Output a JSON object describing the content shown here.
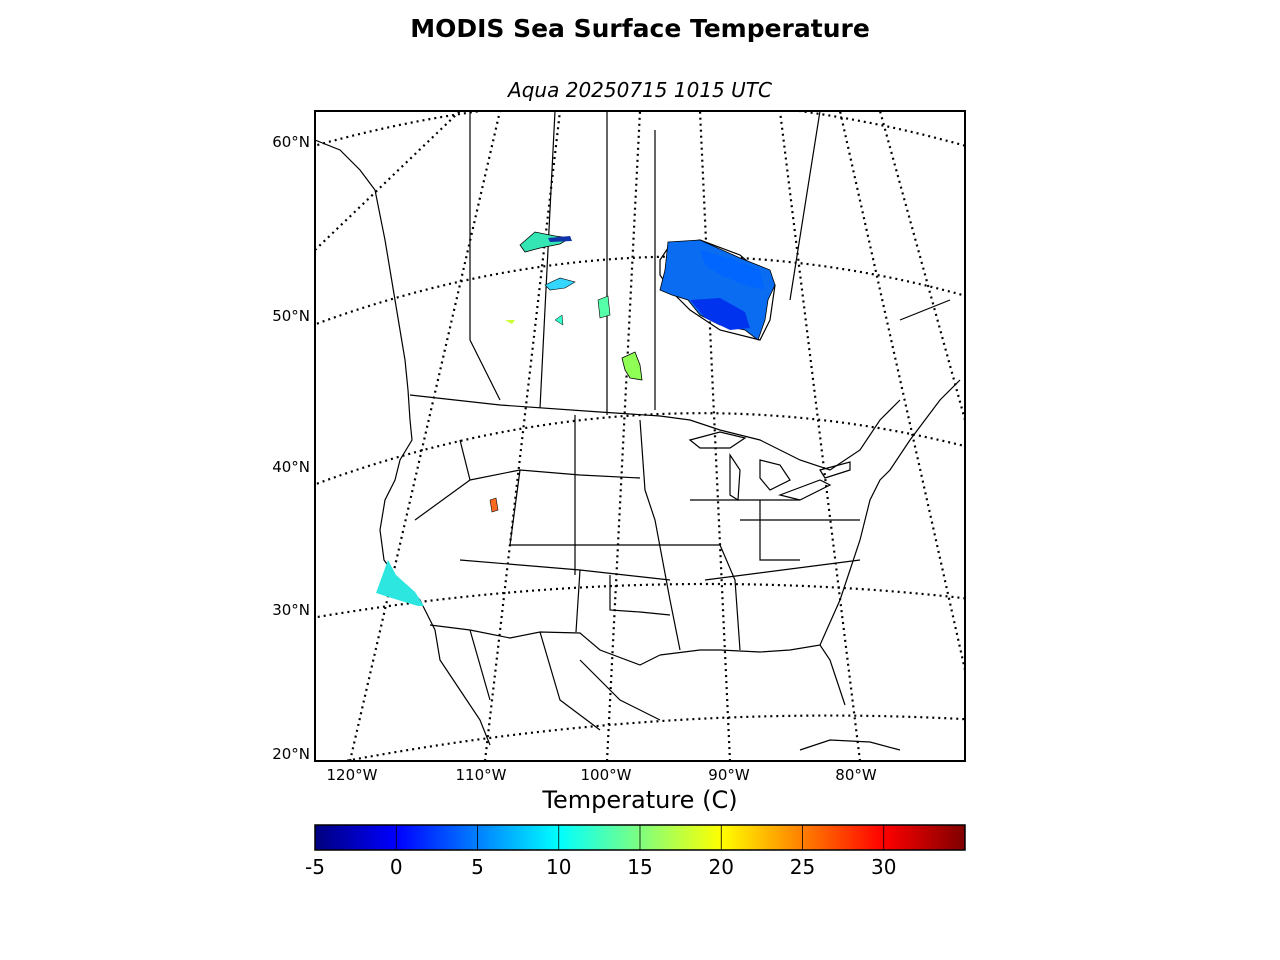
{
  "title": "MODIS Sea Surface Temperature",
  "subtitle": "Aqua 20250715 1015 UTC",
  "map": {
    "projection": "lambert-conformal",
    "lat_labels": [
      "60°N",
      "50°N",
      "40°N",
      "30°N",
      "20°N"
    ],
    "lon_labels": [
      "120°W",
      "110°W",
      "100°W",
      "90°W",
      "80°W"
    ],
    "graticule_style": "dotted",
    "land_color": "#ffffff",
    "coastline_color": "#000000",
    "sst_regions": [
      {
        "name": "Lake Winnipeg area lakes (northwest)",
        "approx_temp_c": 12
      },
      {
        "name": "Hudson Bay (southwest)",
        "approx_temp_c": 3
      },
      {
        "name": "James Bay",
        "approx_temp_c": 1
      },
      {
        "name": "Lake Winnipeg",
        "approx_temp_c": 17
      },
      {
        "name": "Great Salt Lake",
        "approx_temp_c": 24
      },
      {
        "name": "Pacific off California",
        "approx_temp_c": 11
      }
    ]
  },
  "colorbar": {
    "label": "Temperature (C)",
    "vmin": -5,
    "vmax": 35,
    "tick_labels": [
      "-5",
      "0",
      "5",
      "10",
      "15",
      "20",
      "25",
      "30"
    ],
    "tick_values": [
      -5,
      0,
      5,
      10,
      15,
      20,
      25,
      30
    ],
    "colormap": "jet",
    "stops": [
      "#00007f",
      "#0000ff",
      "#007fff",
      "#00ffff",
      "#7fff7f",
      "#ffff00",
      "#ff7f00",
      "#ff0000",
      "#7f0000"
    ]
  }
}
